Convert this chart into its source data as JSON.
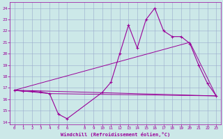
{
  "xlabel": "Windchill (Refroidissement éolien,°C)",
  "background_color": "#cce8e8",
  "grid_color": "#99aacc",
  "line_color": "#990099",
  "xlim": [
    -0.5,
    23.5
  ],
  "ylim": [
    13.8,
    24.5
  ],
  "yticks": [
    14,
    15,
    16,
    17,
    18,
    19,
    20,
    21,
    22,
    23,
    24
  ],
  "xticks": [
    0,
    1,
    2,
    3,
    4,
    5,
    6,
    8,
    9,
    10,
    11,
    12,
    13,
    14,
    15,
    16,
    17,
    18,
    19,
    20,
    21,
    22,
    23
  ],
  "curve1_x": [
    0,
    1,
    2,
    3,
    4,
    5,
    6,
    10,
    11,
    12,
    13,
    14,
    15,
    16,
    17,
    18,
    19,
    20,
    21,
    22,
    23
  ],
  "curve1_y": [
    16.8,
    16.7,
    16.7,
    16.65,
    16.5,
    14.7,
    14.3,
    16.6,
    17.5,
    20.0,
    22.5,
    20.5,
    23.0,
    24.0,
    22.0,
    21.5,
    21.5,
    20.9,
    19.0,
    17.4,
    16.3
  ],
  "line1_x": [
    0,
    23
  ],
  "line1_y": [
    16.8,
    16.3
  ],
  "line2_x": [
    0,
    4,
    23
  ],
  "line2_y": [
    16.8,
    16.5,
    16.3
  ],
  "line3_x": [
    0,
    20,
    23
  ],
  "line3_y": [
    16.8,
    21.0,
    16.3
  ]
}
